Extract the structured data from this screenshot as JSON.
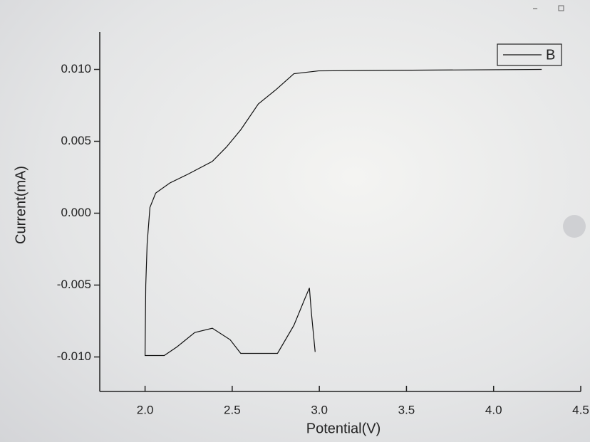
{
  "chart_data": {
    "type": "line",
    "xlabel": "Potential(V)",
    "ylabel": "Current(mA)",
    "x": [
      2.976,
      2.955,
      2.943,
      2.915,
      2.854,
      2.76,
      2.549,
      2.488,
      2.386,
      2.285,
      2.183,
      2.11,
      2.0,
      2.004,
      2.012,
      2.028,
      2.061,
      2.142,
      2.244,
      2.386,
      2.467,
      2.549,
      2.65,
      2.752,
      2.854,
      2.996,
      3.606,
      4.276
    ],
    "series": [
      {
        "name": "B",
        "color": "#111111",
        "values": [
          -0.00965,
          -0.007,
          -0.0052,
          -0.006,
          -0.0078,
          -0.00975,
          -0.00975,
          -0.0088,
          -0.008,
          -0.0083,
          -0.0093,
          -0.0099,
          -0.0099,
          -0.005,
          -0.0021,
          0.0004,
          0.0014,
          0.0021,
          0.0027,
          0.0036,
          0.0046,
          0.0058,
          0.0076,
          0.0086,
          0.0097,
          0.0099,
          0.00995,
          0.01
        ]
      }
    ],
    "xlim": [
      1.74,
      4.5
    ],
    "xticks": [
      {
        "value": 2,
        "label": "2.0"
      },
      2.5,
      {
        "value": 3,
        "label": "3.0"
      },
      3.5,
      {
        "value": 4,
        "label": "4.0"
      },
      4.5
    ],
    "ylim": [
      -0.0124,
      0.0126
    ],
    "yticks": [
      {
        "value": -0.01,
        "label": "-0.010"
      },
      -0.005,
      {
        "value": 0,
        "label": "0.000"
      },
      0.005,
      {
        "value": 0.01,
        "label": "0.010"
      }
    ],
    "legend": "upper right"
  }
}
